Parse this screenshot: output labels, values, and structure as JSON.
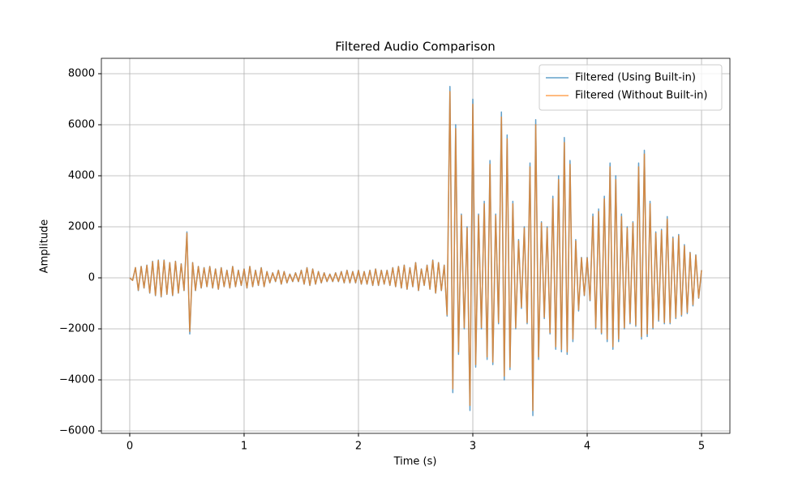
{
  "chart_data": {
    "type": "line",
    "title": "Filtered Audio Comparison",
    "x_label": "Time (s)",
    "y_label": "Amplitude",
    "x": [
      0,
      0.025,
      0.05,
      0.075,
      0.1,
      0.125,
      0.15,
      0.175,
      0.2,
      0.225,
      0.25,
      0.275,
      0.3,
      0.325,
      0.35,
      0.375,
      0.4,
      0.425,
      0.45,
      0.475,
      0.5,
      0.525,
      0.55,
      0.575,
      0.6,
      0.625,
      0.65,
      0.675,
      0.7,
      0.725,
      0.75,
      0.775,
      0.8,
      0.825,
      0.85,
      0.875,
      0.9,
      0.925,
      0.95,
      0.975,
      1,
      1.025,
      1.05,
      1.075,
      1.1,
      1.125,
      1.15,
      1.175,
      1.2,
      1.225,
      1.25,
      1.275,
      1.3,
      1.325,
      1.35,
      1.375,
      1.4,
      1.425,
      1.45,
      1.475,
      1.5,
      1.525,
      1.55,
      1.575,
      1.6,
      1.625,
      1.65,
      1.675,
      1.7,
      1.725,
      1.75,
      1.775,
      1.8,
      1.825,
      1.85,
      1.875,
      1.9,
      1.925,
      1.95,
      1.975,
      2,
      2.025,
      2.05,
      2.075,
      2.1,
      2.125,
      2.15,
      2.175,
      2.2,
      2.225,
      2.25,
      2.275,
      2.3,
      2.325,
      2.35,
      2.375,
      2.4,
      2.425,
      2.45,
      2.475,
      2.5,
      2.525,
      2.55,
      2.575,
      2.6,
      2.625,
      2.65,
      2.675,
      2.7,
      2.725,
      2.75,
      2.775,
      2.8,
      2.825,
      2.85,
      2.875,
      2.9,
      2.925,
      2.95,
      2.975,
      3,
      3.025,
      3.05,
      3.075,
      3.1,
      3.125,
      3.15,
      3.175,
      3.2,
      3.225,
      3.25,
      3.275,
      3.3,
      3.325,
      3.35,
      3.375,
      3.4,
      3.425,
      3.45,
      3.475,
      3.5,
      3.525,
      3.55,
      3.575,
      3.6,
      3.625,
      3.65,
      3.675,
      3.7,
      3.725,
      3.75,
      3.775,
      3.8,
      3.825,
      3.85,
      3.875,
      3.9,
      3.925,
      3.95,
      3.975,
      4,
      4.025,
      4.05,
      4.075,
      4.1,
      4.125,
      4.15,
      4.175,
      4.2,
      4.225,
      4.25,
      4.275,
      4.3,
      4.325,
      4.35,
      4.375,
      4.4,
      4.425,
      4.45,
      4.475,
      4.5,
      4.525,
      4.55,
      4.575,
      4.6,
      4.625,
      4.65,
      4.675,
      4.7,
      4.725,
      4.75,
      4.775,
      4.8,
      4.825,
      4.85,
      4.875,
      4.9,
      4.925,
      4.95,
      4.975,
      5
    ],
    "series": [
      {
        "name": "Filtered (Using Built-in)",
        "color": "#1f77b4",
        "values": [
          0,
          -100,
          400,
          -500,
          450,
          -400,
          500,
          -600,
          650,
          -700,
          700,
          -750,
          700,
          -650,
          600,
          -700,
          650,
          -600,
          550,
          -500,
          1800,
          -2200,
          600,
          -500,
          450,
          -400,
          400,
          -350,
          450,
          -400,
          350,
          -450,
          400,
          -350,
          300,
          -400,
          450,
          -350,
          300,
          -300,
          350,
          -400,
          450,
          -350,
          300,
          -300,
          400,
          -350,
          250,
          -200,
          200,
          -150,
          300,
          -250,
          250,
          -200,
          150,
          -150,
          200,
          -150,
          300,
          -250,
          400,
          -300,
          350,
          -250,
          250,
          -200,
          200,
          -150,
          150,
          -150,
          200,
          -150,
          250,
          -200,
          300,
          -200,
          250,
          -200,
          300,
          -250,
          250,
          -250,
          300,
          -300,
          350,
          -300,
          300,
          -250,
          300,
          -300,
          400,
          -350,
          450,
          -400,
          500,
          -450,
          400,
          -350,
          600,
          -500,
          350,
          -300,
          500,
          -450,
          700,
          -600,
          600,
          -500,
          500,
          -1500,
          7500,
          -4500,
          6000,
          -3000,
          2500,
          -2000,
          2000,
          -5200,
          7000,
          -3500,
          2500,
          -2000,
          3000,
          -3200,
          4600,
          -3400,
          2500,
          -1800,
          6500,
          -4000,
          5600,
          -3600,
          3000,
          -2000,
          1500,
          -1200,
          2000,
          -1800,
          4500,
          -5400,
          6200,
          -3200,
          2200,
          -1600,
          2000,
          -2200,
          3200,
          -2800,
          4000,
          -2900,
          5500,
          -3000,
          4600,
          -2500,
          1500,
          -1300,
          800,
          -700,
          800,
          -900,
          2500,
          -2000,
          2700,
          -2200,
          3200,
          -2500,
          4500,
          -2800,
          4000,
          -2500,
          2500,
          -2000,
          2000,
          -1800,
          2200,
          -1900,
          4500,
          -2400,
          5000,
          -2300,
          3000,
          -2000,
          1800,
          -1700,
          1900,
          -1800,
          2400,
          -1800,
          1600,
          -1600,
          1700,
          -1500,
          1300,
          -1400,
          1000,
          -1100,
          900,
          -800,
          300
        ]
      },
      {
        "name": "Filtered (Without Built-in)",
        "color": "#ff7f0e",
        "values": [
          0,
          -100,
          400,
          -480,
          440,
          -390,
          490,
          -580,
          630,
          -680,
          680,
          -730,
          680,
          -640,
          590,
          -680,
          640,
          -590,
          540,
          -490,
          1750,
          -2100,
          590,
          -490,
          440,
          -390,
          390,
          -340,
          440,
          -390,
          340,
          -440,
          390,
          -340,
          290,
          -390,
          440,
          -340,
          290,
          -290,
          340,
          -390,
          440,
          -340,
          290,
          -290,
          390,
          -340,
          240,
          -190,
          190,
          -140,
          290,
          -240,
          240,
          -190,
          140,
          -140,
          190,
          -140,
          290,
          -240,
          390,
          -290,
          340,
          -240,
          240,
          -190,
          190,
          -140,
          140,
          -140,
          190,
          -140,
          240,
          -190,
          290,
          -190,
          240,
          -190,
          290,
          -240,
          240,
          -240,
          290,
          -290,
          340,
          -290,
          290,
          -240,
          290,
          -290,
          390,
          -340,
          440,
          -390,
          490,
          -440,
          390,
          -340,
          590,
          -490,
          340,
          -290,
          490,
          -440,
          680,
          -590,
          590,
          -490,
          490,
          -1450,
          7300,
          -4350,
          5850,
          -2900,
          2450,
          -1950,
          1950,
          -5000,
          6800,
          -3400,
          2450,
          -1950,
          2900,
          -3100,
          4450,
          -3300,
          2450,
          -1750,
          6300,
          -3850,
          5450,
          -3500,
          2900,
          -1950,
          1450,
          -1150,
          1950,
          -1750,
          4350,
          -5200,
          6000,
          -3100,
          2150,
          -1550,
          1950,
          -2150,
          3100,
          -2700,
          3850,
          -2800,
          5300,
          -2900,
          4450,
          -2400,
          1450,
          -1250,
          780,
          -680,
          780,
          -870,
          2400,
          -1950,
          2600,
          -2150,
          3100,
          -2400,
          4350,
          -2700,
          3850,
          -2400,
          2400,
          -1950,
          1950,
          -1750,
          2150,
          -1850,
          4350,
          -2300,
          4850,
          -2200,
          2900,
          -1950,
          1750,
          -1650,
          1850,
          -1750,
          2300,
          -1750,
          1550,
          -1550,
          1650,
          -1450,
          1250,
          -1350,
          980,
          -1050,
          880,
          -780,
          300
        ]
      }
    ],
    "xlim": [
      -0.248,
      5.248
    ],
    "xticks": [
      0,
      1,
      2,
      3,
      4,
      5
    ],
    "ylim": [
      -6095,
      8603
    ],
    "yticks": [
      {
        "value": -6000,
        "label": "−6000"
      },
      {
        "value": -4000,
        "label": "−4000"
      },
      {
        "value": -2000,
        "label": "−2000"
      },
      0,
      2000,
      4000,
      6000,
      8000
    ],
    "grid": true,
    "legend": "upper-right"
  }
}
